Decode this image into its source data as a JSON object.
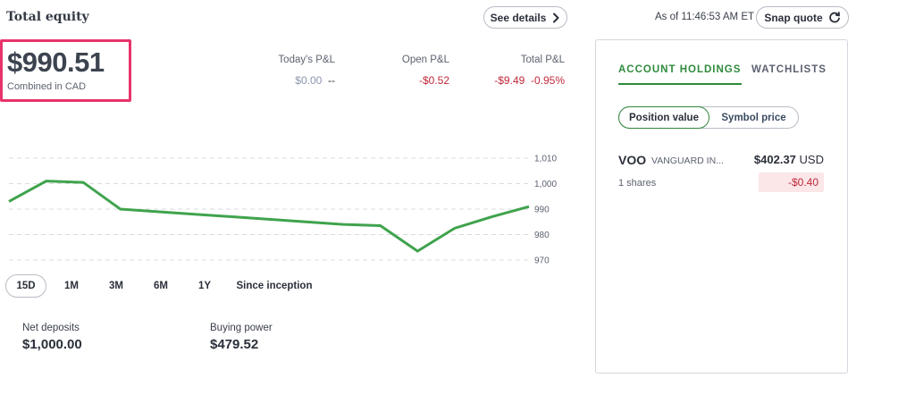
{
  "header": {
    "title": "Total equity",
    "see_details_label": "See details",
    "as_of": "As of 11:46:53 AM ET",
    "snap_quote_label": "Snap quote"
  },
  "equity": {
    "value": "$990.51",
    "subtitle": "Combined in CAD"
  },
  "pnl": [
    {
      "label": "Today's P&L",
      "value": "$0.00",
      "pct": "--"
    },
    {
      "label": "Open P&L",
      "value": "-$0.52",
      "pct": ""
    },
    {
      "label": "Total P&L",
      "value": "-$9.49",
      "pct": "-0.95%"
    }
  ],
  "chart_data": {
    "type": "line",
    "x": [
      0,
      1,
      2,
      3,
      4,
      5,
      6,
      7,
      8,
      9,
      10,
      11,
      12,
      13,
      14
    ],
    "series": [
      {
        "values": [
          993,
          1001,
          1000.5,
          990,
          989,
          988,
          987,
          986,
          985,
          984,
          983.5,
          973.5,
          982.5,
          987,
          991
        ]
      }
    ],
    "y_ticks": [
      "1,010",
      "1,000",
      "990",
      "980",
      "970"
    ],
    "ylim": [
      970,
      1010
    ],
    "grid": true,
    "color": "#3fa34d"
  },
  "ranges": [
    "15D",
    "1M",
    "3M",
    "6M",
    "1Y",
    "Since inception"
  ],
  "active_range": "15D",
  "stats": {
    "net_deposits_label": "Net deposits",
    "net_deposits_value": "$1,000.00",
    "buying_power_label": "Buying power",
    "buying_power_value": "$479.52"
  },
  "panel": {
    "tab_holdings": "ACCOUNT HOLDINGS",
    "tab_watchlists": "WATCHLISTS",
    "toggle_position": "Position value",
    "toggle_symbol": "Symbol price",
    "holdings": [
      {
        "symbol": "VOO",
        "name": "VANGUARD IN...",
        "price": "$402.37",
        "currency": "USD",
        "shares": "1 shares",
        "change": "-$0.40"
      }
    ]
  },
  "colors": {
    "accent_green": "#2e8a3c",
    "highlight_pink": "#e8336a",
    "loss_red": "#c0283a",
    "loss_bg": "#fbe6e8"
  },
  "icons": {
    "see_details": "chevron-right-icon",
    "snap_quote": "refresh-icon"
  }
}
